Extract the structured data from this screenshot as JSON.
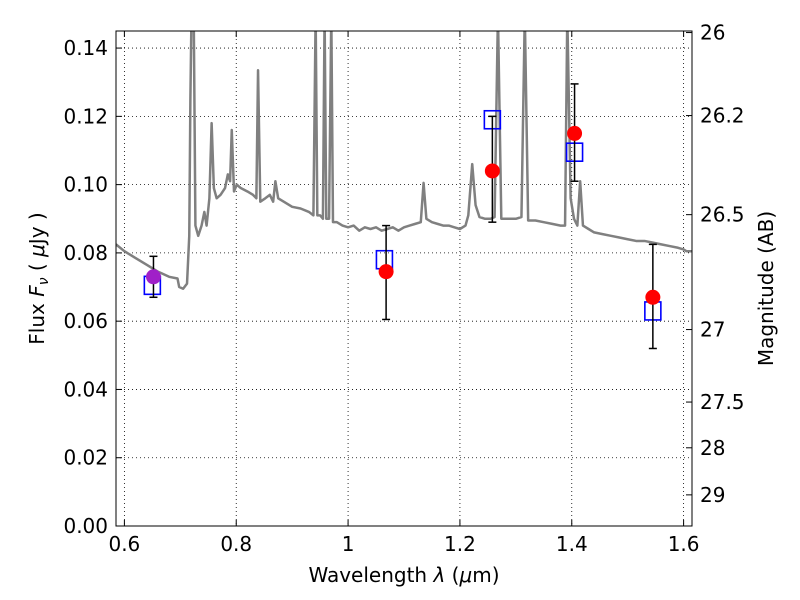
{
  "chart_data": {
    "type": "scatter",
    "xlabel": {
      "prefix": "Wavelength  ",
      "symbol": "λ",
      "mid": " (",
      "unit_mu": "μ",
      "unit_rest": "m)"
    },
    "ylabel": {
      "prefix": "Flux  ",
      "symbol": "F",
      "sub": "ν",
      "mid": "  ( ",
      "unit_mu": "μ",
      "unit_rest": "Jy )"
    },
    "y2label": "Magnitude (AB)",
    "xlim": [
      0.585,
      1.615
    ],
    "ylim": [
      0.0,
      0.145
    ],
    "grid": true,
    "x_ticks": [
      {
        "v": 0.6,
        "label": "0.6"
      },
      {
        "v": 0.8,
        "label": "0.8"
      },
      {
        "v": 1.0,
        "label": "1"
      },
      {
        "v": 1.2,
        "label": "1.2"
      },
      {
        "v": 1.4,
        "label": "1.4"
      },
      {
        "v": 1.6,
        "label": "1.6"
      }
    ],
    "y_ticks": [
      {
        "v": 0.0,
        "label": "0.00"
      },
      {
        "v": 0.02,
        "label": "0.02"
      },
      {
        "v": 0.04,
        "label": "0.04"
      },
      {
        "v": 0.06,
        "label": "0.06"
      },
      {
        "v": 0.08,
        "label": "0.08"
      },
      {
        "v": 0.1,
        "label": "0.10"
      },
      {
        "v": 0.12,
        "label": "0.12"
      },
      {
        "v": 0.14,
        "label": "0.14"
      }
    ],
    "y2_ticks": [
      {
        "mag": 26,
        "label": "26"
      },
      {
        "mag": 26.2,
        "label": "26.2"
      },
      {
        "mag": 26.5,
        "label": "26.5"
      },
      {
        "mag": 27,
        "label": "27"
      },
      {
        "mag": 27.5,
        "label": "27.5"
      },
      {
        "mag": 28,
        "label": "28"
      },
      {
        "mag": 29,
        "label": "29"
      }
    ],
    "sed_model": {
      "color": "#808080",
      "points": [
        [
          0.585,
          0.0825
        ],
        [
          0.6,
          0.0805
        ],
        [
          0.62,
          0.0785
        ],
        [
          0.64,
          0.0765
        ],
        [
          0.66,
          0.0745
        ],
        [
          0.68,
          0.073
        ],
        [
          0.695,
          0.0725
        ],
        [
          0.698,
          0.07
        ],
        [
          0.705,
          0.0695
        ],
        [
          0.712,
          0.071
        ],
        [
          0.716,
          0.085
        ],
        [
          0.718,
          0.125
        ],
        [
          0.72,
          0.15
        ],
        [
          0.724,
          0.15
        ],
        [
          0.727,
          0.088
        ],
        [
          0.732,
          0.085
        ],
        [
          0.738,
          0.088
        ],
        [
          0.743,
          0.092
        ],
        [
          0.747,
          0.088
        ],
        [
          0.752,
          0.096
        ],
        [
          0.756,
          0.118
        ],
        [
          0.76,
          0.099
        ],
        [
          0.765,
          0.096
        ],
        [
          0.772,
          0.097
        ],
        [
          0.78,
          0.099
        ],
        [
          0.785,
          0.103
        ],
        [
          0.789,
          0.101
        ],
        [
          0.792,
          0.116
        ],
        [
          0.796,
          0.098
        ],
        [
          0.801,
          0.1
        ],
        [
          0.808,
          0.099
        ],
        [
          0.82,
          0.098
        ],
        [
          0.83,
          0.097
        ],
        [
          0.836,
          0.096
        ],
        [
          0.839,
          0.1335
        ],
        [
          0.843,
          0.095
        ],
        [
          0.852,
          0.096
        ],
        [
          0.86,
          0.097
        ],
        [
          0.866,
          0.095
        ],
        [
          0.87,
          0.101
        ],
        [
          0.875,
          0.096
        ],
        [
          0.885,
          0.095
        ],
        [
          0.9,
          0.0935
        ],
        [
          0.915,
          0.093
        ],
        [
          0.93,
          0.092
        ],
        [
          0.938,
          0.091
        ],
        [
          0.942,
          0.15
        ],
        [
          0.945,
          0.091
        ],
        [
          0.95,
          0.091
        ],
        [
          0.955,
          0.09
        ],
        [
          0.958,
          0.15
        ],
        [
          0.961,
          0.09
        ],
        [
          0.966,
          0.09
        ],
        [
          0.97,
          0.15
        ],
        [
          0.973,
          0.089
        ],
        [
          0.98,
          0.089
        ],
        [
          0.99,
          0.088
        ],
        [
          1.0,
          0.0875
        ],
        [
          1.01,
          0.088
        ],
        [
          1.02,
          0.0865
        ],
        [
          1.03,
          0.0875
        ],
        [
          1.04,
          0.087
        ],
        [
          1.05,
          0.0875
        ],
        [
          1.06,
          0.0865
        ],
        [
          1.07,
          0.087
        ],
        [
          1.08,
          0.0875
        ],
        [
          1.09,
          0.0865
        ],
        [
          1.1,
          0.0875
        ],
        [
          1.11,
          0.088
        ],
        [
          1.12,
          0.0885
        ],
        [
          1.13,
          0.089
        ],
        [
          1.135,
          0.1005
        ],
        [
          1.14,
          0.09
        ],
        [
          1.15,
          0.089
        ],
        [
          1.16,
          0.0885
        ],
        [
          1.17,
          0.088
        ],
        [
          1.18,
          0.088
        ],
        [
          1.19,
          0.0875
        ],
        [
          1.2,
          0.087
        ],
        [
          1.21,
          0.088
        ],
        [
          1.215,
          0.091
        ],
        [
          1.222,
          0.106
        ],
        [
          1.228,
          0.094
        ],
        [
          1.235,
          0.0905
        ],
        [
          1.245,
          0.09
        ],
        [
          1.255,
          0.09
        ],
        [
          1.262,
          0.0905
        ],
        [
          1.268,
          0.15
        ],
        [
          1.274,
          0.09
        ],
        [
          1.285,
          0.09
        ],
        [
          1.3,
          0.09
        ],
        [
          1.31,
          0.0905
        ],
        [
          1.316,
          0.15
        ],
        [
          1.322,
          0.0895
        ],
        [
          1.335,
          0.0895
        ],
        [
          1.35,
          0.089
        ],
        [
          1.365,
          0.0885
        ],
        [
          1.38,
          0.088
        ],
        [
          1.388,
          0.088
        ],
        [
          1.392,
          0.15
        ],
        [
          1.398,
          0.096
        ],
        [
          1.404,
          0.09
        ],
        [
          1.41,
          0.088
        ],
        [
          1.415,
          0.101
        ],
        [
          1.42,
          0.088
        ],
        [
          1.43,
          0.087
        ],
        [
          1.44,
          0.086
        ],
        [
          1.455,
          0.0855
        ],
        [
          1.47,
          0.085
        ],
        [
          1.485,
          0.0845
        ],
        [
          1.5,
          0.084
        ],
        [
          1.515,
          0.0835
        ],
        [
          1.53,
          0.0835
        ],
        [
          1.545,
          0.083
        ],
        [
          1.56,
          0.0825
        ],
        [
          1.575,
          0.082
        ],
        [
          1.59,
          0.0815
        ],
        [
          1.6,
          0.081
        ],
        [
          1.605,
          0.0805
        ],
        [
          1.615,
          0.0805
        ]
      ]
    },
    "observed_points": [
      {
        "x": 1.068,
        "y": 0.0745,
        "yerr_low": 0.0605,
        "yerr_high": 0.088,
        "color": "#ff0000"
      },
      {
        "x": 1.258,
        "y": 0.104,
        "yerr_low": 0.089,
        "yerr_high": 0.12,
        "color": "#ff0000"
      },
      {
        "x": 1.405,
        "y": 0.115,
        "yerr_low": 0.101,
        "yerr_high": 0.1295,
        "color": "#ff0000"
      },
      {
        "x": 1.545,
        "y": 0.067,
        "yerr_low": 0.052,
        "yerr_high": 0.0825,
        "color": "#ff0000"
      },
      {
        "x": 0.652,
        "y": 0.073,
        "yerr_low": 0.067,
        "yerr_high": 0.079,
        "color": "#a020c8"
      }
    ],
    "model_photometry": [
      {
        "x": 0.65,
        "y": 0.0705
      },
      {
        "x": 1.065,
        "y": 0.078
      },
      {
        "x": 1.258,
        "y": 0.119
      },
      {
        "x": 1.405,
        "y": 0.1095
      },
      {
        "x": 1.545,
        "y": 0.063
      }
    ],
    "colors": {
      "model_box": "#0000ff",
      "errorbar": "#000000",
      "grid": "#000000"
    }
  }
}
